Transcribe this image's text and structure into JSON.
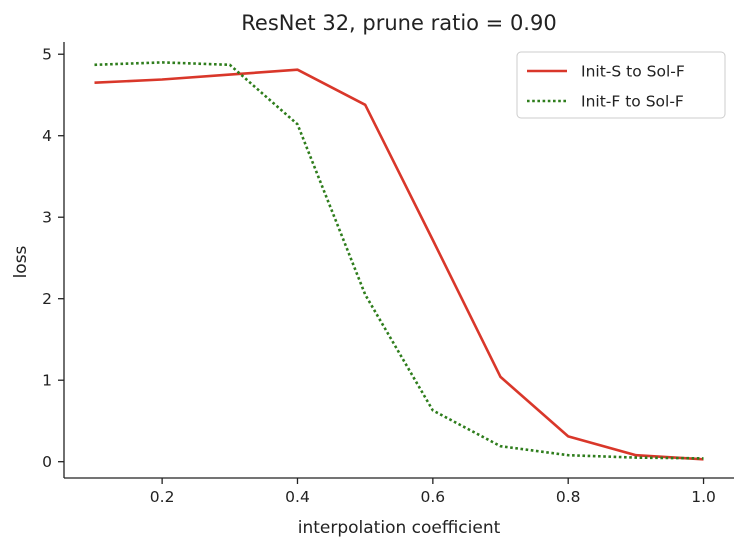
{
  "chart_data": {
    "type": "line",
    "title": "ResNet 32, prune ratio = 0.90",
    "xlabel": "interpolation coefficient",
    "ylabel": "loss",
    "xlim": [
      0.055,
      1.045
    ],
    "ylim": [
      -0.2,
      5.15
    ],
    "xticks": [
      0.2,
      0.4,
      0.6,
      0.8,
      1.0
    ],
    "xtick_labels": [
      "0.2",
      "0.4",
      "0.6",
      "0.8",
      "1.0"
    ],
    "yticks": [
      0,
      1,
      2,
      3,
      4,
      5
    ],
    "ytick_labels": [
      "0",
      "1",
      "2",
      "3",
      "4",
      "5"
    ],
    "grid": false,
    "legend_position": "top-right",
    "series": [
      {
        "name": "Init-S to Sol-F",
        "color": "#d9372a",
        "style": "solid",
        "x": [
          0.1,
          0.2,
          0.3,
          0.4,
          0.5,
          0.6,
          0.7,
          0.8,
          0.9,
          1.0
        ],
        "y": [
          4.65,
          4.69,
          4.75,
          4.81,
          4.38,
          2.72,
          1.04,
          0.31,
          0.08,
          0.03
        ]
      },
      {
        "name": "Init-F to Sol-F",
        "color": "#2e7d1c",
        "style": "dotted",
        "x": [
          0.1,
          0.2,
          0.3,
          0.4,
          0.5,
          0.6,
          0.7,
          0.8,
          0.9,
          1.0
        ],
        "y": [
          4.87,
          4.9,
          4.87,
          4.14,
          2.05,
          0.63,
          0.19,
          0.08,
          0.05,
          0.04
        ]
      }
    ]
  }
}
